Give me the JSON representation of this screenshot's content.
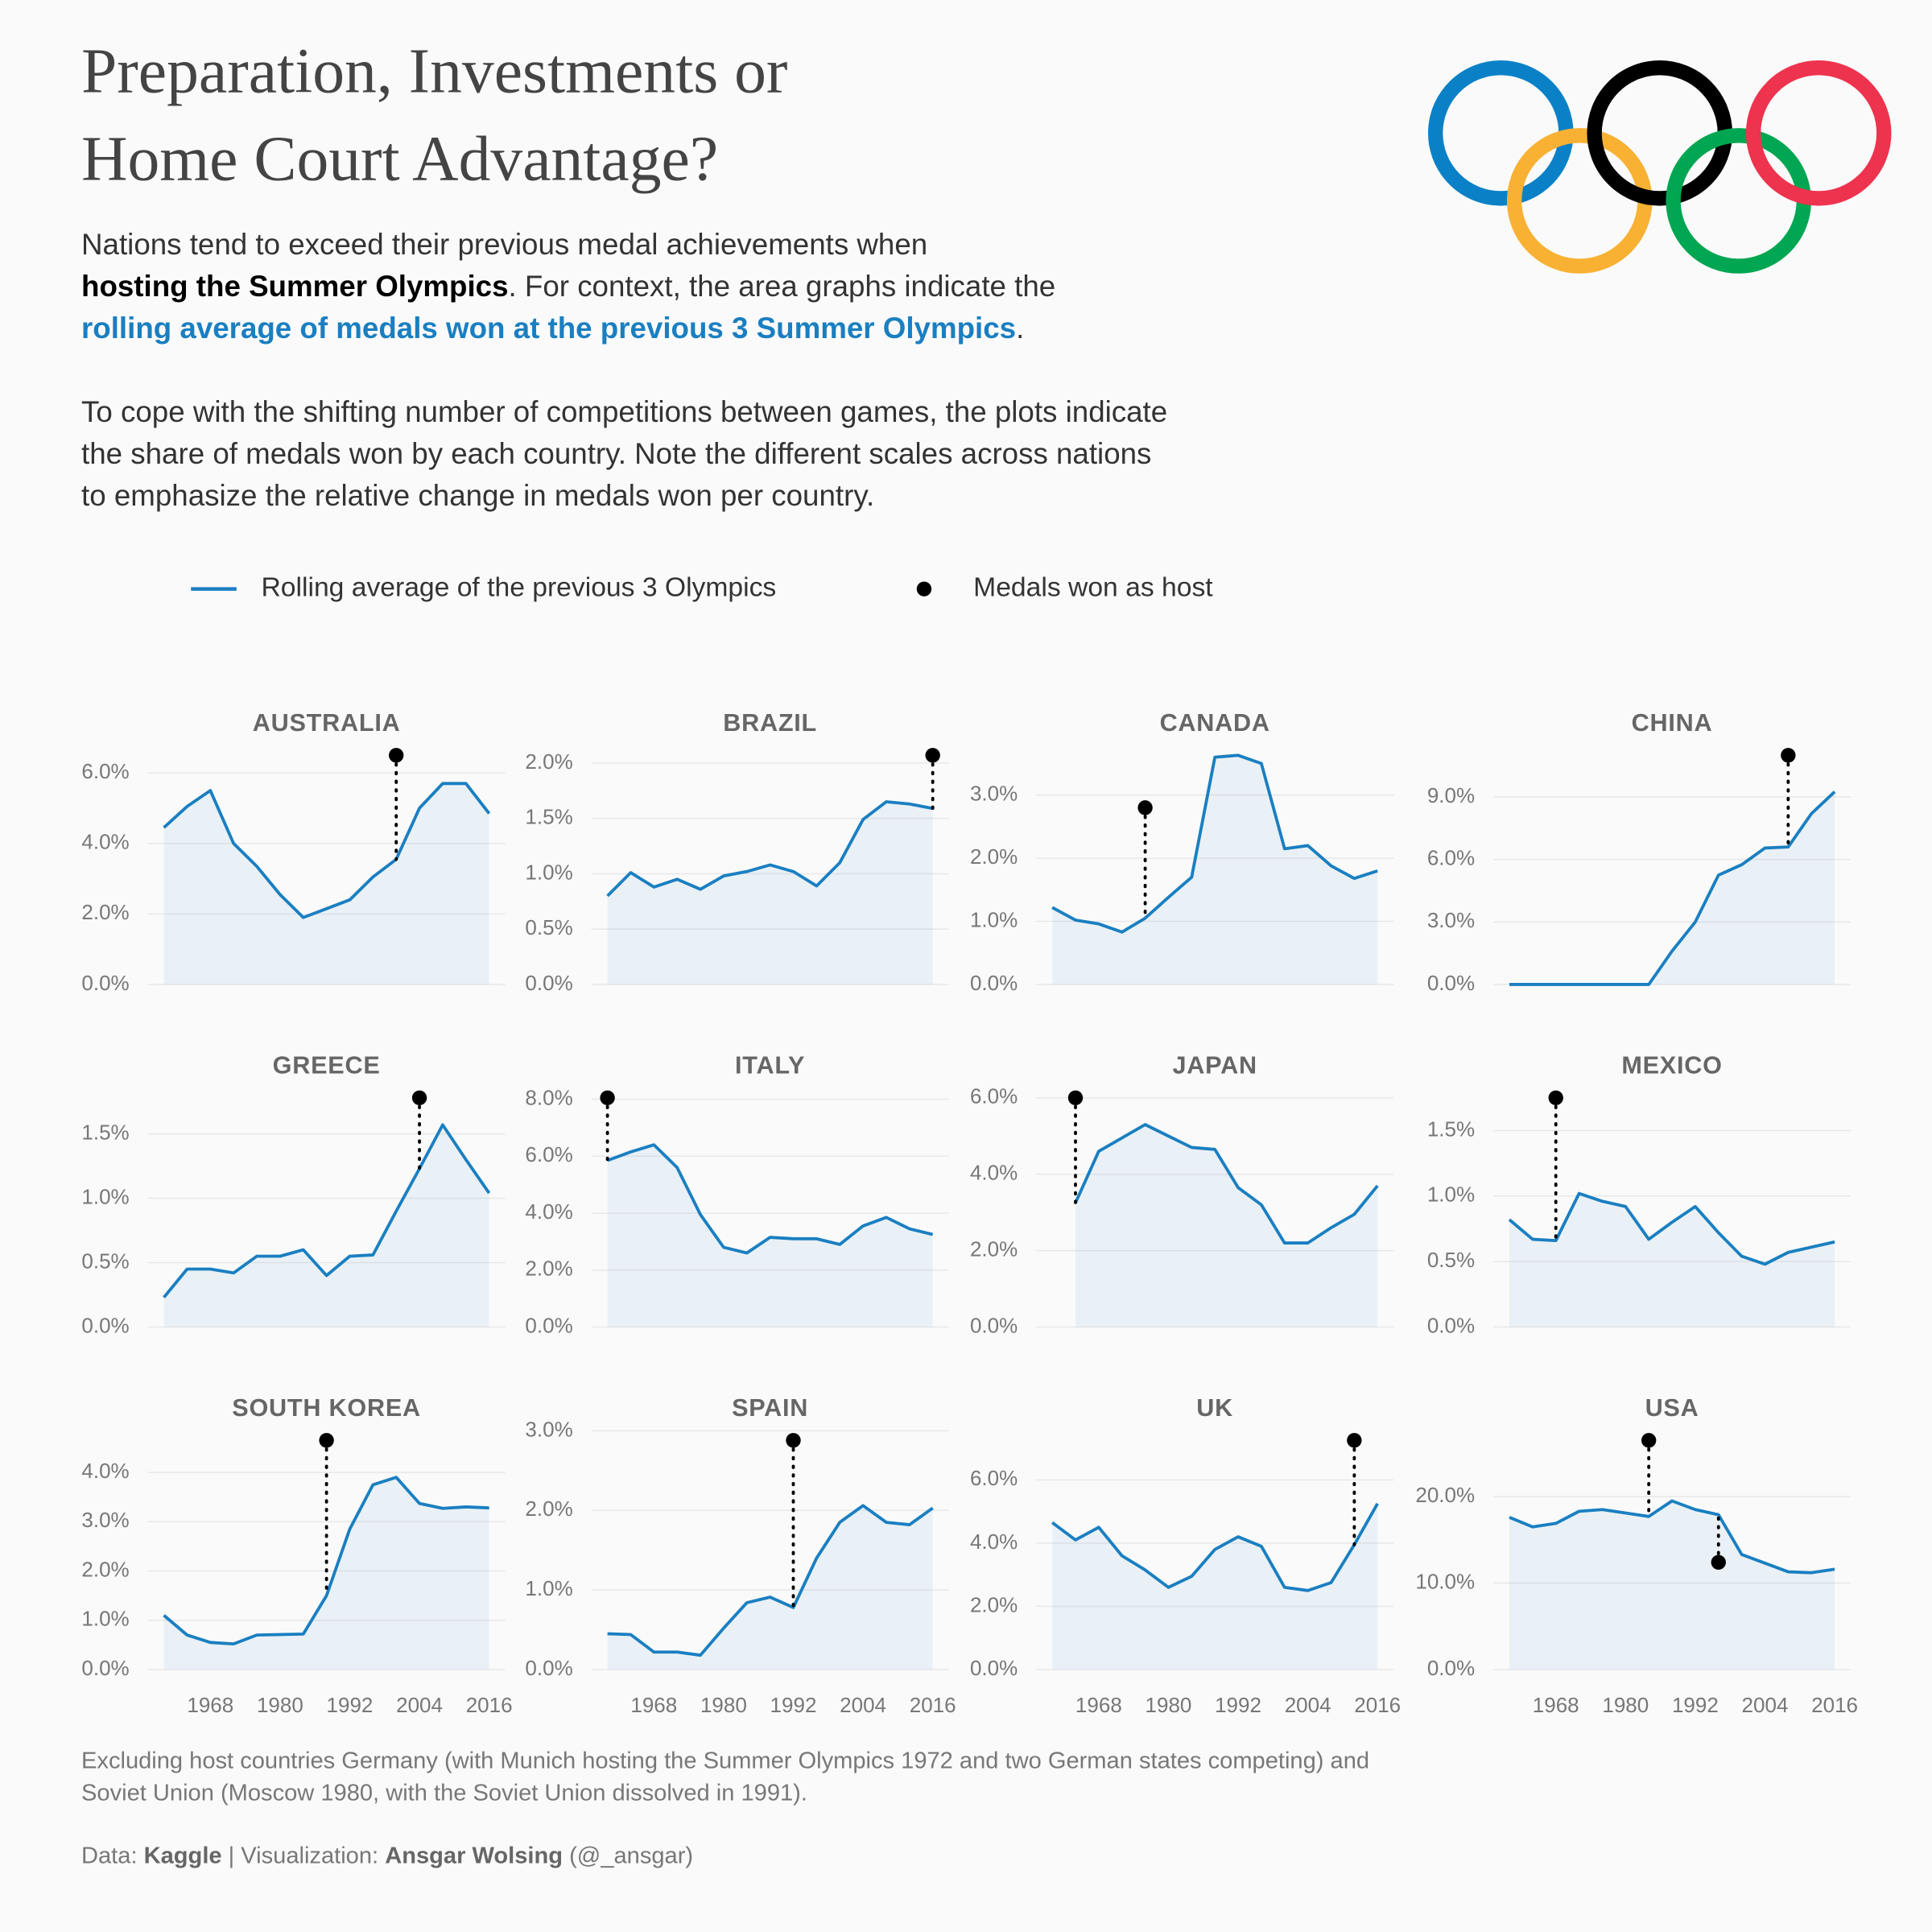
{
  "title": [
    "Preparation, Investments or",
    "Home Court Advantage?"
  ],
  "intro": [
    "Nations tend to exceed their previous medal achievements when",
    "hosting the Summer Olympics",
    ". For context, the area graphs indicate the",
    "rolling average of medals won at the previous 3 Summer Olympics",
    "."
  ],
  "note": [
    "To cope with the shifting number of competitions between games, the plots indicate",
    "the share of medals won by each country. Note the different scales across nations",
    "to emphasize the relative change in medals won per country."
  ],
  "footnote": [
    "Excluding host countries Germany (with Munich hosting the Summer Olympics 1972 and two German states competing) and",
    "Soviet Union (Moscow 1980, with the Soviet Union dissolved in 1991)."
  ],
  "caption": [
    "Data:",
    "Kaggle",
    "| Visualization:",
    "Ansgar Wolsing",
    "(@_ansgar)"
  ],
  "chart_data": [
    {
      "type": "line",
      "title": "AUSTRALIA",
      "x": [
        1960,
        1964,
        1968,
        1972,
        1976,
        1980,
        1984,
        1988,
        1992,
        1996,
        2000,
        2004,
        2008,
        2012,
        2016
      ],
      "xlim": [
        1960,
        2016
      ],
      "ylim": [
        0,
        6.5
      ],
      "yticks": [
        {
          "value": 0,
          "label": "0.0%"
        },
        {
          "value": 2,
          "label": "2.0%"
        },
        {
          "value": 4,
          "label": "4.0%"
        },
        {
          "value": 6,
          "label": "6.0%"
        }
      ],
      "series": [
        {
          "name": "Rolling average of the previous 3 Olympics",
          "color": "#1a7fc1",
          "values": [
            4.45,
            5.05,
            5.5,
            4.0,
            3.35,
            2.55,
            1.9,
            2.15,
            2.4,
            3.05,
            3.55,
            5.0,
            5.7,
            5.7,
            4.85
          ]
        },
        {
          "name": "Medals won as host",
          "color": "#000000",
          "values": [
            null,
            null,
            null,
            null,
            null,
            null,
            null,
            null,
            null,
            null,
            6.5,
            null,
            null,
            null,
            null
          ]
        }
      ]
    },
    {
      "type": "line",
      "title": "BRAZIL",
      "x": [
        1960,
        1964,
        1968,
        1972,
        1976,
        1980,
        1984,
        1988,
        1992,
        1996,
        2000,
        2004,
        2008,
        2012,
        2016
      ],
      "xlim": [
        1960,
        2016
      ],
      "ylim": [
        0,
        2.07
      ],
      "yticks": [
        {
          "value": 0,
          "label": "0.0%"
        },
        {
          "value": 0.5,
          "label": "0.5%"
        },
        {
          "value": 1,
          "label": "1.0%"
        },
        {
          "value": 1.5,
          "label": "1.5%"
        },
        {
          "value": 2,
          "label": "2.0%"
        }
      ],
      "series": [
        {
          "name": "Rolling average of the previous 3 Olympics",
          "color": "#1a7fc1",
          "values": [
            0.8,
            1.01,
            0.88,
            0.95,
            0.86,
            0.98,
            1.02,
            1.08,
            1.02,
            0.89,
            1.1,
            1.49,
            1.65,
            1.63,
            1.59
          ]
        },
        {
          "name": "Medals won as host",
          "color": "#000000",
          "values": [
            null,
            null,
            null,
            null,
            null,
            null,
            null,
            null,
            null,
            null,
            null,
            null,
            null,
            null,
            2.07
          ]
        }
      ]
    },
    {
      "type": "line",
      "title": "CANADA",
      "x": [
        1960,
        1964,
        1968,
        1972,
        1976,
        1980,
        1984,
        1988,
        1992,
        1996,
        2000,
        2004,
        2008,
        2012,
        2016
      ],
      "xlim": [
        1960,
        2016
      ],
      "ylim": [
        0,
        3.63
      ],
      "yticks": [
        {
          "value": 0,
          "label": "0.0%"
        },
        {
          "value": 1,
          "label": "1.0%"
        },
        {
          "value": 2,
          "label": "2.0%"
        },
        {
          "value": 3,
          "label": "3.0%"
        }
      ],
      "series": [
        {
          "name": "Rolling average of the previous 3 Olympics",
          "color": "#1a7fc1",
          "values": [
            1.22,
            1.02,
            0.96,
            0.83,
            1.05,
            1.38,
            1.7,
            3.6,
            3.63,
            3.5,
            2.15,
            2.2,
            1.88,
            1.68,
            1.8
          ]
        },
        {
          "name": "Medals won as host",
          "color": "#000000",
          "values": [
            null,
            null,
            null,
            null,
            2.8,
            null,
            null,
            null,
            null,
            null,
            null,
            null,
            null,
            null,
            null
          ]
        }
      ]
    },
    {
      "type": "line",
      "title": "CHINA",
      "x": [
        1960,
        1964,
        1968,
        1972,
        1976,
        1980,
        1984,
        1988,
        1992,
        1996,
        2000,
        2004,
        2008,
        2012,
        2016
      ],
      "xlim": [
        1960,
        2016
      ],
      "ylim": [
        0,
        11.0
      ],
      "yticks": [
        {
          "value": 0,
          "label": "0.0%"
        },
        {
          "value": 3,
          "label": "3.0%"
        },
        {
          "value": 6,
          "label": "6.0%"
        },
        {
          "value": 9,
          "label": "9.0%"
        }
      ],
      "series": [
        {
          "name": "Rolling average of the previous 3 Olympics",
          "color": "#1a7fc1",
          "values": [
            0,
            0,
            0,
            0,
            0,
            0,
            0,
            1.6,
            3.0,
            5.25,
            5.75,
            6.55,
            6.6,
            8.2,
            9.25
          ]
        },
        {
          "name": "Medals won as host",
          "color": "#000000",
          "values": [
            null,
            null,
            null,
            null,
            null,
            null,
            null,
            null,
            null,
            null,
            null,
            null,
            11.0,
            null,
            null
          ]
        }
      ]
    },
    {
      "type": "line",
      "title": "GREECE",
      "x": [
        1960,
        1964,
        1968,
        1972,
        1976,
        1980,
        1984,
        1988,
        1992,
        1996,
        2000,
        2004,
        2008,
        2012,
        2016
      ],
      "xlim": [
        1960,
        2016
      ],
      "ylim": [
        0,
        1.78
      ],
      "yticks": [
        {
          "value": 0,
          "label": "0.0%"
        },
        {
          "value": 0.5,
          "label": "0.5%"
        },
        {
          "value": 1,
          "label": "1.0%"
        },
        {
          "value": 1.5,
          "label": "1.5%"
        }
      ],
      "series": [
        {
          "name": "Rolling average of the previous 3 Olympics",
          "color": "#1a7fc1",
          "values": [
            0.23,
            0.45,
            0.45,
            0.42,
            0.55,
            0.55,
            0.6,
            0.4,
            0.55,
            0.56,
            0.9,
            1.23,
            1.57,
            1.3,
            1.04
          ]
        },
        {
          "name": "Medals won as host",
          "color": "#000000",
          "values": [
            null,
            null,
            null,
            null,
            null,
            null,
            null,
            null,
            null,
            null,
            null,
            1.78,
            null,
            null,
            null
          ]
        }
      ]
    },
    {
      "type": "line",
      "title": "ITALY",
      "x": [
        1960,
        1964,
        1968,
        1972,
        1976,
        1980,
        1984,
        1988,
        1992,
        1996,
        2000,
        2004,
        2008,
        2012,
        2016
      ],
      "xlim": [
        1960,
        2016
      ],
      "ylim": [
        0,
        8.05
      ],
      "yticks": [
        {
          "value": 0,
          "label": "0.0%"
        },
        {
          "value": 2,
          "label": "2.0%"
        },
        {
          "value": 4,
          "label": "4.0%"
        },
        {
          "value": 6,
          "label": "6.0%"
        },
        {
          "value": 8,
          "label": "8.0%"
        }
      ],
      "series": [
        {
          "name": "Rolling average of the previous 3 Olympics",
          "color": "#1a7fc1",
          "values": [
            5.85,
            6.15,
            6.4,
            5.6,
            3.95,
            2.8,
            2.6,
            3.15,
            3.1,
            3.1,
            2.9,
            3.55,
            3.85,
            3.45,
            3.25
          ]
        },
        {
          "name": "Medals won as host",
          "color": "#000000",
          "values": [
            8.05,
            null,
            null,
            null,
            null,
            null,
            null,
            null,
            null,
            null,
            null,
            null,
            null,
            null,
            null
          ]
        }
      ]
    },
    {
      "type": "line",
      "title": "JAPAN",
      "x": [
        1960,
        1964,
        1968,
        1972,
        1976,
        1980,
        1984,
        1988,
        1992,
        1996,
        2000,
        2004,
        2008,
        2012,
        2016
      ],
      "xlim": [
        1960,
        2016
      ],
      "ylim": [
        0,
        6.0
      ],
      "yticks": [
        {
          "value": 0,
          "label": "0.0%"
        },
        {
          "value": 2,
          "label": "2.0%"
        },
        {
          "value": 4,
          "label": "4.0%"
        },
        {
          "value": 6,
          "label": "6.0%"
        }
      ],
      "series": [
        {
          "name": "Rolling average of the previous 3 Olympics",
          "color": "#1a7fc1",
          "values": [
            null,
            3.25,
            4.6,
            4.95,
            5.3,
            5.0,
            4.7,
            4.65,
            3.65,
            3.2,
            2.2,
            2.2,
            2.6,
            2.95,
            3.7
          ]
        },
        {
          "name": "Medals won as host",
          "color": "#000000",
          "values": [
            null,
            6.0,
            null,
            null,
            null,
            null,
            null,
            null,
            null,
            null,
            null,
            null,
            null,
            null,
            null
          ]
        }
      ]
    },
    {
      "type": "line",
      "title": "MEXICO",
      "x": [
        1960,
        1964,
        1968,
        1972,
        1976,
        1980,
        1984,
        1988,
        1992,
        1996,
        2000,
        2004,
        2008,
        2012,
        2016
      ],
      "xlim": [
        1960,
        2016
      ],
      "ylim": [
        0,
        1.75
      ],
      "yticks": [
        {
          "value": 0,
          "label": "0.0%"
        },
        {
          "value": 0.5,
          "label": "0.5%"
        },
        {
          "value": 1,
          "label": "1.0%"
        },
        {
          "value": 1.5,
          "label": "1.5%"
        }
      ],
      "series": [
        {
          "name": "Rolling average of the previous 3 Olympics",
          "color": "#1a7fc1",
          "values": [
            0.82,
            0.67,
            0.66,
            1.02,
            0.96,
            0.92,
            0.67,
            0.8,
            0.92,
            0.72,
            0.54,
            0.48,
            0.57,
            0.61,
            0.65
          ]
        },
        {
          "name": "Medals won as host",
          "color": "#000000",
          "values": [
            null,
            null,
            1.75,
            null,
            null,
            null,
            null,
            null,
            null,
            null,
            null,
            null,
            null,
            null,
            null
          ]
        }
      ]
    },
    {
      "type": "line",
      "title": "SOUTH KOREA",
      "x": [
        1960,
        1964,
        1968,
        1972,
        1976,
        1980,
        1984,
        1988,
        1992,
        1996,
        2000,
        2004,
        2008,
        2012,
        2016
      ],
      "xlim": [
        1960,
        2016
      ],
      "ylim": [
        0,
        4.65
      ],
      "xticks": [
        1968,
        1980,
        1992,
        2004,
        2016
      ],
      "yticks": [
        {
          "value": 0,
          "label": "0.0%"
        },
        {
          "value": 1,
          "label": "1.0%"
        },
        {
          "value": 2,
          "label": "2.0%"
        },
        {
          "value": 3,
          "label": "3.0%"
        },
        {
          "value": 4,
          "label": "4.0%"
        }
      ],
      "series": [
        {
          "name": "Rolling average of the previous 3 Olympics",
          "color": "#1a7fc1",
          "values": [
            1.1,
            0.7,
            0.55,
            0.52,
            0.7,
            0.71,
            0.72,
            1.5,
            2.85,
            3.75,
            3.9,
            3.37,
            3.27,
            3.3,
            3.28
          ]
        },
        {
          "name": "Medals won as host",
          "color": "#000000",
          "values": [
            null,
            null,
            null,
            null,
            null,
            null,
            null,
            4.65,
            null,
            null,
            null,
            null,
            null,
            null,
            null
          ]
        }
      ]
    },
    {
      "type": "line",
      "title": "SPAIN",
      "x": [
        1960,
        1964,
        1968,
        1972,
        1976,
        1980,
        1984,
        1988,
        1992,
        1996,
        2000,
        2004,
        2008,
        2012,
        2016
      ],
      "xlim": [
        1960,
        2016
      ],
      "ylim": [
        0,
        2.88
      ],
      "xticks": [
        1968,
        1980,
        1992,
        2004,
        2016
      ],
      "yticks": [
        {
          "value": 0,
          "label": "0.0%"
        },
        {
          "value": 1,
          "label": "1.0%"
        },
        {
          "value": 2,
          "label": "2.0%"
        },
        {
          "value": 3,
          "label": "3.0%"
        }
      ],
      "series": [
        {
          "name": "Rolling average of the previous 3 Olympics",
          "color": "#1a7fc1",
          "values": [
            0.45,
            0.44,
            0.22,
            0.22,
            0.18,
            0.52,
            0.84,
            0.91,
            0.78,
            1.4,
            1.85,
            2.06,
            1.85,
            1.82,
            2.03
          ]
        },
        {
          "name": "Medals won as host",
          "color": "#000000",
          "values": [
            null,
            null,
            null,
            null,
            null,
            null,
            null,
            null,
            2.88,
            null,
            null,
            null,
            null,
            null,
            null
          ]
        }
      ]
    },
    {
      "type": "line",
      "title": "UK",
      "x": [
        1960,
        1964,
        1968,
        1972,
        1976,
        1980,
        1984,
        1988,
        1992,
        1996,
        2000,
        2004,
        2008,
        2012,
        2016
      ],
      "xlim": [
        1960,
        2016
      ],
      "ylim": [
        0,
        7.25
      ],
      "xticks": [
        1968,
        1980,
        1992,
        2004,
        2016
      ],
      "yticks": [
        {
          "value": 0,
          "label": "0.0%"
        },
        {
          "value": 2,
          "label": "2.0%"
        },
        {
          "value": 4,
          "label": "4.0%"
        },
        {
          "value": 6,
          "label": "6.0%"
        }
      ],
      "series": [
        {
          "name": "Rolling average of the previous 3 Olympics",
          "color": "#1a7fc1",
          "values": [
            4.65,
            4.1,
            4.5,
            3.6,
            3.15,
            2.6,
            2.95,
            3.8,
            4.2,
            3.9,
            2.6,
            2.5,
            2.75,
            3.95,
            5.25
          ]
        },
        {
          "name": "Medals won as host",
          "color": "#000000",
          "values": [
            null,
            null,
            null,
            null,
            null,
            null,
            null,
            null,
            null,
            null,
            null,
            null,
            null,
            7.25,
            null
          ]
        }
      ]
    },
    {
      "type": "line",
      "title": "USA",
      "x": [
        1960,
        1964,
        1968,
        1972,
        1976,
        1980,
        1984,
        1988,
        1992,
        1996,
        2000,
        2004,
        2008,
        2012,
        2016
      ],
      "xlim": [
        1960,
        2016
      ],
      "ylim": [
        0,
        26.5
      ],
      "xticks": [
        1968,
        1980,
        1992,
        2004,
        2016
      ],
      "yticks": [
        {
          "value": 0,
          "label": "0.0%"
        },
        {
          "value": 10,
          "label": "10.0%"
        },
        {
          "value": 20,
          "label": "20.0%"
        }
      ],
      "series": [
        {
          "name": "Rolling average of the previous 3 Olympics",
          "color": "#1a7fc1",
          "values": [
            17.6,
            16.5,
            16.9,
            18.3,
            18.5,
            18.1,
            17.7,
            19.5,
            18.5,
            17.9,
            13.3,
            12.3,
            11.3,
            11.2,
            11.6
          ]
        },
        {
          "name": "Medals won as host",
          "color": "#000000",
          "values": [
            null,
            null,
            null,
            null,
            null,
            null,
            26.5,
            null,
            null,
            12.4,
            null,
            null,
            null,
            null,
            null
          ]
        }
      ]
    }
  ]
}
